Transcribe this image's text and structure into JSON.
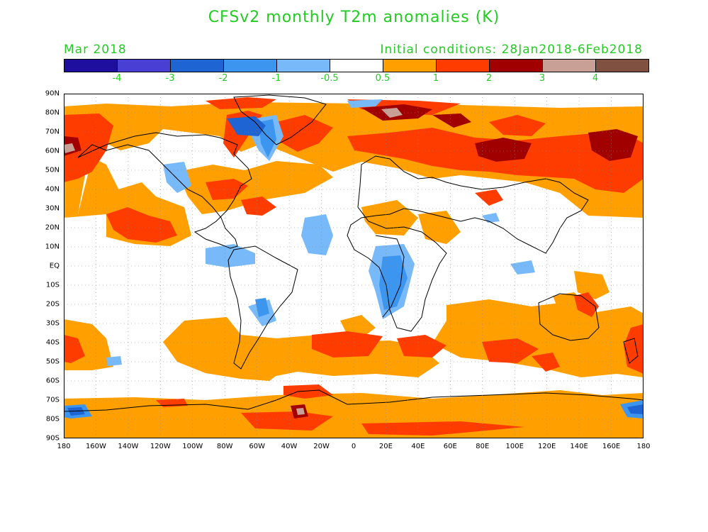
{
  "title": "CFSv2 monthly T2m anomalies (K)",
  "valid_month": "Mar 2018",
  "initial_conditions": "Initial conditions: 28Jan2018-6Feb2018",
  "colorbar": {
    "colors": [
      "#1f0f9e",
      "#4a3fd4",
      "#1e64d2",
      "#3c96f0",
      "#78b9fa",
      "#ffffff",
      "#ffa000",
      "#ff3c00",
      "#a00000",
      "#c8a096",
      "#805040"
    ],
    "labels": [
      "-4",
      "-3",
      "-2",
      "-1",
      "-0.5",
      "0.5",
      "1",
      "2",
      "3",
      "4"
    ]
  },
  "lat_labels": [
    "90N",
    "80N",
    "70N",
    "60N",
    "50N",
    "40N",
    "30N",
    "20N",
    "10N",
    "EQ",
    "10S",
    "20S",
    "30S",
    "40S",
    "50S",
    "60S",
    "70S",
    "80S",
    "90S"
  ],
  "lon_labels": [
    "180",
    "160W",
    "140W",
    "120W",
    "100W",
    "80W",
    "60W",
    "40W",
    "20W",
    "0",
    "20E",
    "40E",
    "60E",
    "80E",
    "100E",
    "120E",
    "140E",
    "160E",
    "180"
  ]
}
